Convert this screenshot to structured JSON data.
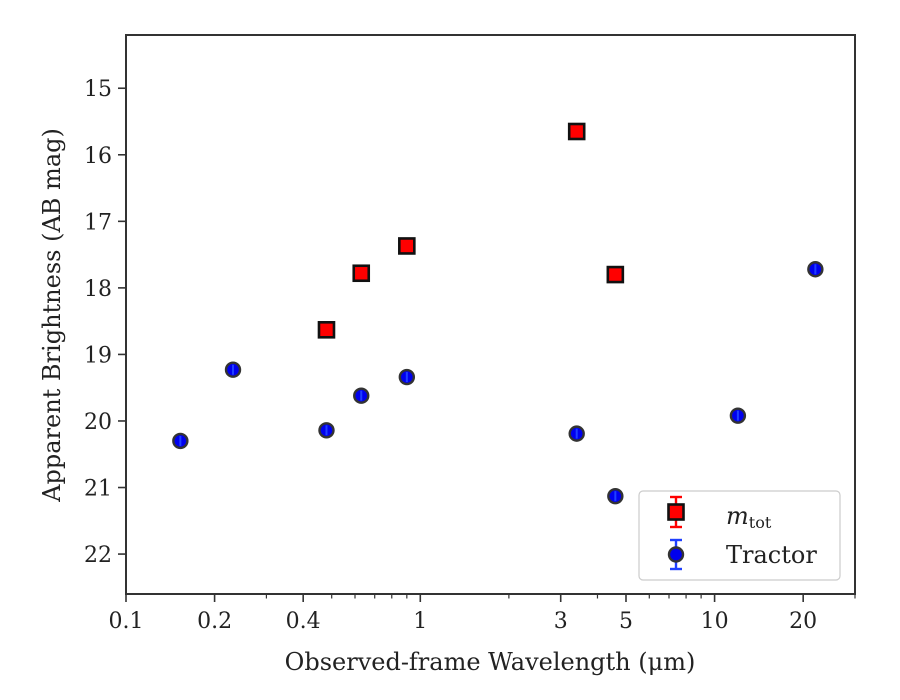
{
  "chart_data": {
    "type": "scatter",
    "xlabel": "Observed-frame Wavelength (μm)",
    "ylabel": "Apparent Brightness (AB mag)",
    "xscale": "log",
    "xlim": [
      0.1,
      30
    ],
    "ylim": [
      22.6,
      14.2
    ],
    "y_inverted": true,
    "grid": false,
    "legend_position": "bottom-right",
    "x_ticks": [
      {
        "value": 0.1,
        "label": "0.1"
      },
      {
        "value": 0.2,
        "label": "0.2"
      },
      {
        "value": 0.4,
        "label": "0.4"
      },
      {
        "value": 1,
        "label": "1"
      },
      {
        "value": 3,
        "label": "3"
      },
      {
        "value": 5,
        "label": "5"
      },
      {
        "value": 10,
        "label": "10"
      },
      {
        "value": 20,
        "label": "20"
      }
    ],
    "y_ticks": [
      {
        "value": 15,
        "label": "15"
      },
      {
        "value": 16,
        "label": "16"
      },
      {
        "value": 17,
        "label": "17"
      },
      {
        "value": 18,
        "label": "18"
      },
      {
        "value": 19,
        "label": "19"
      },
      {
        "value": 20,
        "label": "20"
      },
      {
        "value": 21,
        "label": "21"
      },
      {
        "value": 22,
        "label": "22"
      }
    ],
    "series": [
      {
        "name": "m_tot",
        "legend_main": "m",
        "legend_sub": "tot",
        "marker": "square",
        "color": "#ff0000",
        "edge_color": "#111111",
        "points": [
          {
            "x": 0.48,
            "y": 18.63
          },
          {
            "x": 0.63,
            "y": 17.78
          },
          {
            "x": 0.9,
            "y": 17.37
          },
          {
            "x": 3.4,
            "y": 15.65
          },
          {
            "x": 4.6,
            "y": 17.8
          }
        ]
      },
      {
        "name": "Tractor",
        "legend_main": "Tractor",
        "marker": "circle",
        "color": "#0000ee",
        "edge_color": "#333333",
        "errorbar_color": "#1f3fff",
        "points": [
          {
            "x": 0.153,
            "y": 20.3
          },
          {
            "x": 0.231,
            "y": 19.23
          },
          {
            "x": 0.48,
            "y": 20.14
          },
          {
            "x": 0.63,
            "y": 19.62
          },
          {
            "x": 0.9,
            "y": 19.34
          },
          {
            "x": 3.4,
            "y": 20.19
          },
          {
            "x": 4.6,
            "y": 21.13
          },
          {
            "x": 12,
            "y": 19.92
          },
          {
            "x": 22,
            "y": 17.72
          }
        ]
      }
    ]
  }
}
